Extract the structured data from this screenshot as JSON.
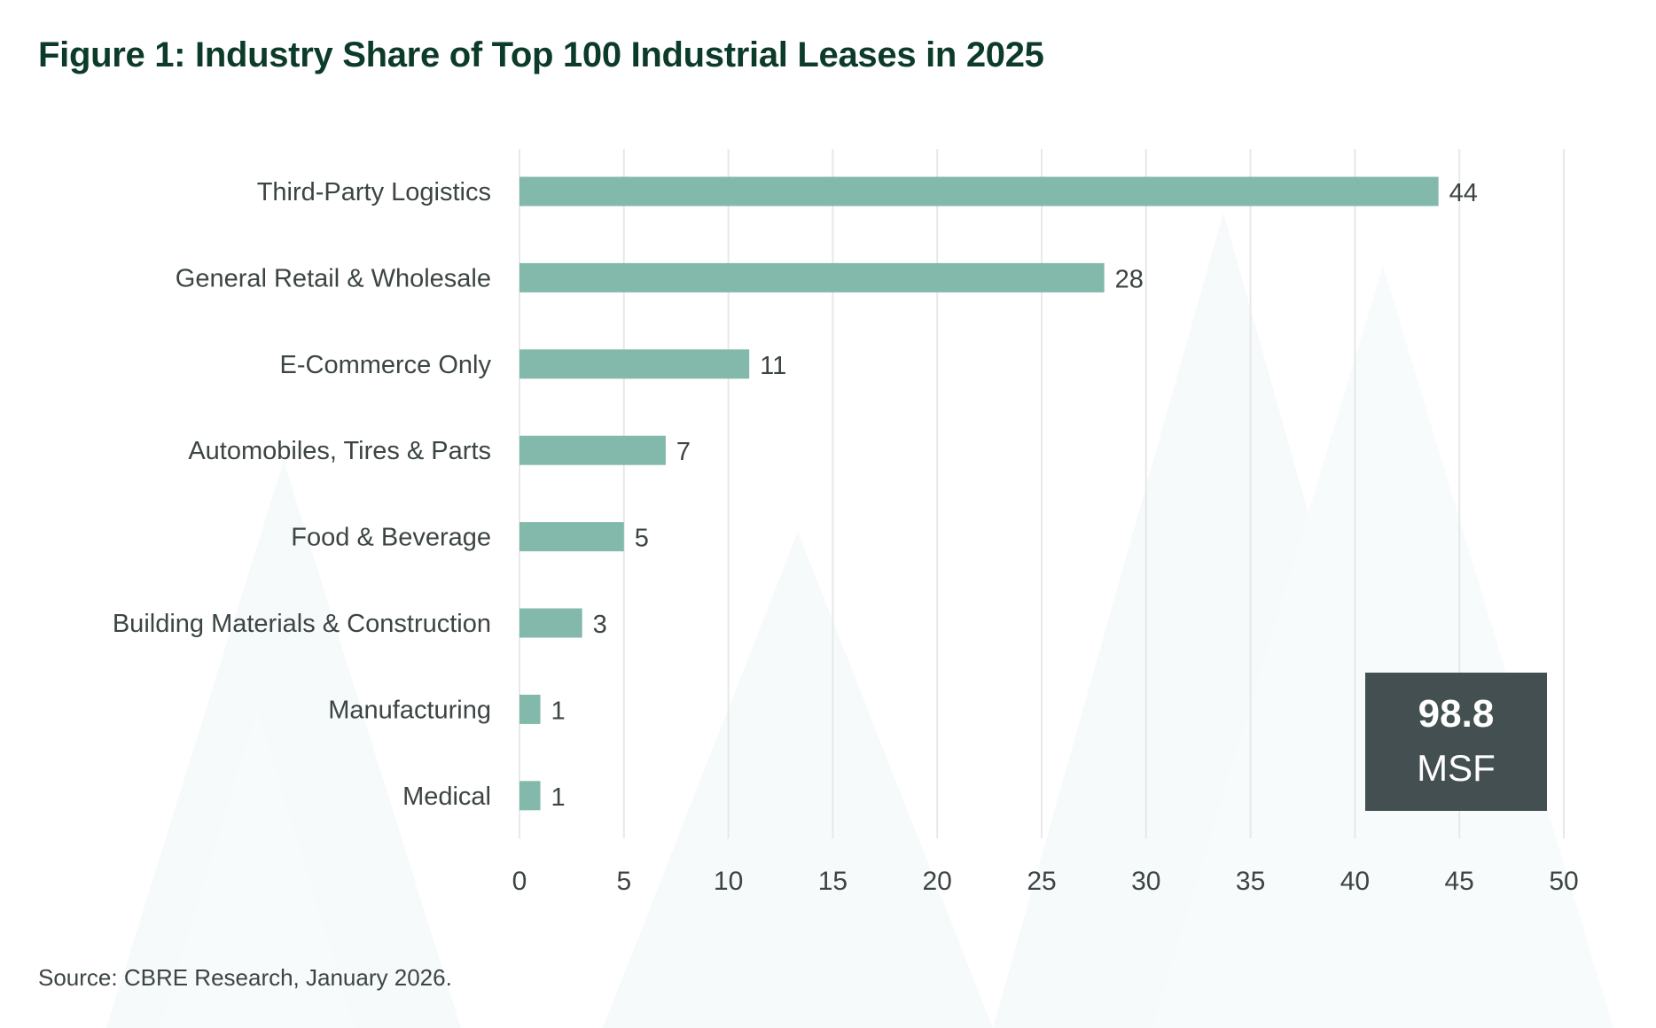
{
  "title": "Figure 1: Industry Share of Top 100 Industrial Leases in 2025",
  "source": "Source: CBRE Research, January 2026.",
  "callout": {
    "value": "98.8",
    "unit": "MSF"
  },
  "colors": {
    "bar": "#82b9aa",
    "title": "#0d3b2a",
    "callout": "#434f50",
    "grid": "#e6e9e8",
    "text": "#3c4444"
  },
  "chart_data": {
    "type": "bar",
    "orientation": "horizontal",
    "categories": [
      "Third-Party Logistics",
      "General Retail & Wholesale",
      "E-Commerce Only",
      "Automobiles, Tires & Parts",
      "Food & Beverage",
      "Building Materials & Construction",
      "Manufacturing",
      "Medical"
    ],
    "values": [
      44,
      28,
      11,
      7,
      5,
      3,
      1,
      1
    ],
    "title": "Figure 1: Industry Share of Top 100 Industrial Leases in 2025",
    "xlabel": "",
    "ylabel": "",
    "xlim": [
      0,
      50
    ],
    "xticks": [
      0,
      5,
      10,
      15,
      20,
      25,
      30,
      35,
      40,
      45,
      50
    ],
    "grid": "vertical",
    "data_labels": true
  }
}
